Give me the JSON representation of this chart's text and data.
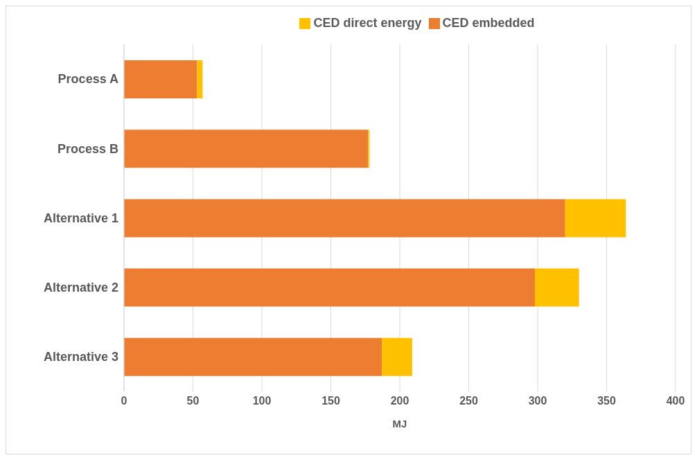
{
  "chart_data": {
    "type": "bar",
    "orientation": "horizontal",
    "stacked": true,
    "xlabel": "MJ",
    "categories": [
      "Process A",
      "Process B",
      "Alternative 1",
      "Alternative 2",
      "Alternative 3"
    ],
    "series": [
      {
        "name": "CED embedded",
        "color": "#ed7d31",
        "values": [
          53,
          177,
          320,
          298,
          187
        ]
      },
      {
        "name": "CED direct energy",
        "color": "#ffc000",
        "values": [
          4,
          1,
          44,
          32,
          22
        ]
      }
    ],
    "xlim": [
      0,
      400
    ],
    "xticks": [
      0,
      50,
      100,
      150,
      200,
      250,
      300,
      350,
      400
    ],
    "grid": "x",
    "legend": "top"
  }
}
